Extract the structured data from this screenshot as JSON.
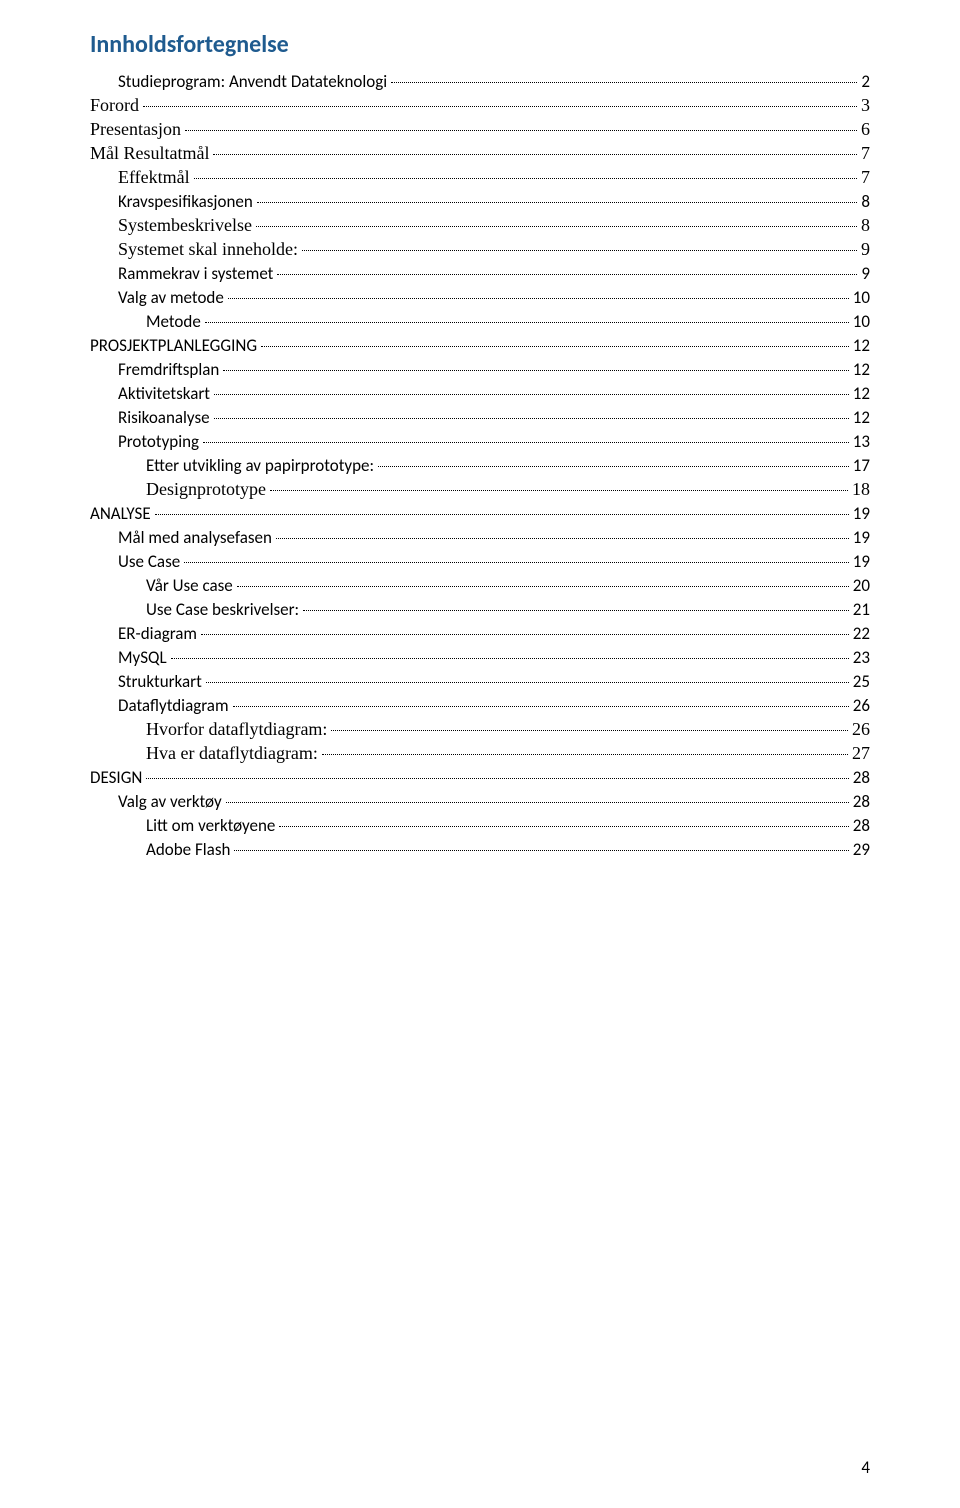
{
  "title": "Innholdsfortegnelse",
  "toc": [
    {
      "label": "Studieprogram: Anvendt Datateknologi",
      "page": "2",
      "indent": 1,
      "serif": false
    },
    {
      "label": "Forord",
      "page": "3",
      "indent": 0,
      "serif": true
    },
    {
      "label": "Presentasjon",
      "page": "6",
      "indent": 0,
      "serif": true
    },
    {
      "label": "Mål  Resultatmål",
      "page": "7",
      "indent": 0,
      "serif": true
    },
    {
      "label": "Effektmål",
      "page": "7",
      "indent": 1,
      "serif": true
    },
    {
      "label": "Kravspesifikasjonen",
      "page": "8",
      "indent": 1,
      "serif": false
    },
    {
      "label": "Systembeskrivelse",
      "page": "8",
      "indent": 1,
      "serif": true
    },
    {
      "label": "Systemet skal inneholde:",
      "page": "9",
      "indent": 1,
      "serif": true
    },
    {
      "label": "Rammekrav i systemet",
      "page": "9",
      "indent": 1,
      "serif": false
    },
    {
      "label": "Valg av metode",
      "page": "10",
      "indent": 1,
      "serif": false
    },
    {
      "label": "Metode",
      "page": "10",
      "indent": 2,
      "serif": false
    },
    {
      "label": "PROSJEKTPLANLEGGING",
      "page": "12",
      "indent": 0,
      "serif": false
    },
    {
      "label": "Fremdriftsplan",
      "page": "12",
      "indent": 1,
      "serif": false
    },
    {
      "label": "Aktivitetskart",
      "page": "12",
      "indent": 1,
      "serif": false
    },
    {
      "label": "Risikoanalyse",
      "page": "12",
      "indent": 1,
      "serif": false
    },
    {
      "label": "Prototyping",
      "page": "13",
      "indent": 1,
      "serif": false
    },
    {
      "label": "Etter utvikling av papirprototype:",
      "page": "17",
      "indent": 2,
      "serif": false
    },
    {
      "label": "Designprototype",
      "page": "18",
      "indent": 2,
      "serif": true
    },
    {
      "label": "ANALYSE",
      "page": "19",
      "indent": 0,
      "serif": false
    },
    {
      "label": "Mål med analysefasen",
      "page": "19",
      "indent": 1,
      "serif": false
    },
    {
      "label": "Use Case",
      "page": "19",
      "indent": 1,
      "serif": false
    },
    {
      "label": "Vår Use case",
      "page": "20",
      "indent": 2,
      "serif": false
    },
    {
      "label": "Use Case beskrivelser:",
      "page": "21",
      "indent": 2,
      "serif": false
    },
    {
      "label": "ER-diagram",
      "page": "22",
      "indent": 1,
      "serif": false
    },
    {
      "label": "MySQL",
      "page": "23",
      "indent": 1,
      "serif": false
    },
    {
      "label": "Strukturkart",
      "page": "25",
      "indent": 1,
      "serif": false
    },
    {
      "label": "Dataflytdiagram",
      "page": "26",
      "indent": 1,
      "serif": false
    },
    {
      "label": "Hvorfor dataflytdiagram:",
      "page": "26",
      "indent": 2,
      "serif": true
    },
    {
      "label": "Hva er dataflytdiagram:",
      "page": "27",
      "indent": 2,
      "serif": true
    },
    {
      "label": "DESIGN",
      "page": "28",
      "indent": 0,
      "serif": false
    },
    {
      "label": "Valg av verktøy",
      "page": "28",
      "indent": 1,
      "serif": false
    },
    {
      "label": "Litt om verktøyene",
      "page": "28",
      "indent": 2,
      "serif": false
    },
    {
      "label": "Adobe Flash",
      "page": "29",
      "indent": 2,
      "serif": false
    }
  ],
  "pageNumber": "4"
}
